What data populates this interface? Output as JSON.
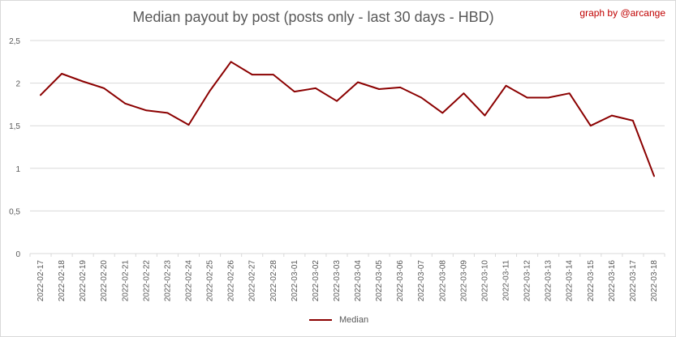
{
  "header": {
    "title": "Median payout by post (posts only - last 30 days - HBD)",
    "credit": "graph by @arcange"
  },
  "colors": {
    "series": "#8b0000",
    "grid": "#d9d9d9",
    "text": "#595959",
    "credit": "#c00000"
  },
  "chart_data": {
    "type": "line",
    "title": "Median payout by post (posts only - last 30 days - HBD)",
    "xlabel": "",
    "ylabel": "",
    "ylim": [
      0,
      2.5
    ],
    "y_ticks": [
      "0",
      "0,5",
      "1",
      "1,5",
      "2",
      "2,5"
    ],
    "y_tick_values": [
      0,
      0.5,
      1,
      1.5,
      2,
      2.5
    ],
    "grid": true,
    "legend_position": "bottom",
    "categories": [
      "2022-02-17",
      "2022-02-18",
      "2022-02-19",
      "2022-02-20",
      "2022-02-21",
      "2022-02-22",
      "2022-02-23",
      "2022-02-24",
      "2022-02-25",
      "2022-02-26",
      "2022-02-27",
      "2022-02-28",
      "2022-03-01",
      "2022-03-02",
      "2022-03-03",
      "2022-03-04",
      "2022-03-05",
      "2022-03-06",
      "2022-03-07",
      "2022-03-08",
      "2022-03-09",
      "2022-03-10",
      "2022-03-11",
      "2022-03-12",
      "2022-03-13",
      "2022-03-14",
      "2022-03-15",
      "2022-03-16",
      "2022-03-17",
      "2022-03-18"
    ],
    "series": [
      {
        "name": "Median",
        "color": "#8b0000",
        "values": [
          1.86,
          2.11,
          2.02,
          1.94,
          1.76,
          1.68,
          1.65,
          1.51,
          1.91,
          2.25,
          2.1,
          2.1,
          1.9,
          1.94,
          1.79,
          2.01,
          1.93,
          1.95,
          1.83,
          1.65,
          1.88,
          1.62,
          1.97,
          1.83,
          1.83,
          1.88,
          1.5,
          1.62,
          1.56,
          0.91
        ]
      }
    ]
  }
}
